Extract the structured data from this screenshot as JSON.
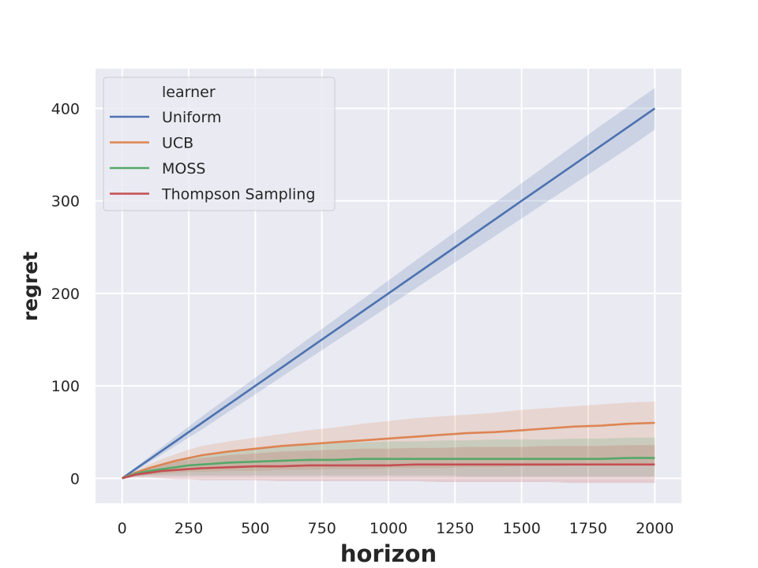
{
  "chart_data": {
    "type": "line",
    "title": "",
    "xlabel": "horizon",
    "ylabel": "regret",
    "xlim": [
      -100,
      2100
    ],
    "ylim": [
      -27,
      443
    ],
    "xticks": [
      0,
      250,
      500,
      750,
      1000,
      1250,
      1500,
      1750,
      2000
    ],
    "yticks": [
      0,
      100,
      200,
      300,
      400
    ],
    "grid": true,
    "legend": {
      "title": "learner",
      "placement": "top-left"
    },
    "x": [
      0,
      50,
      100,
      150,
      200,
      250,
      300,
      400,
      500,
      600,
      700,
      800,
      900,
      1000,
      1100,
      1200,
      1300,
      1400,
      1500,
      1600,
      1700,
      1800,
      1900,
      2000
    ],
    "series": [
      {
        "name": "Uniform",
        "color": "#4c72b0",
        "values": [
          0,
          10,
          20,
          30,
          40,
          50,
          60,
          80,
          100,
          120,
          140,
          160,
          180,
          200,
          220,
          240,
          260,
          280,
          300,
          320,
          340,
          360,
          380,
          400
        ],
        "lower": [
          0,
          8,
          17,
          26,
          35,
          44,
          53,
          72,
          91,
          110,
          129,
          148,
          167,
          186,
          205,
          224,
          243,
          262,
          281,
          300,
          319,
          338,
          357,
          377
        ],
        "upper": [
          0,
          12,
          23,
          34,
          45,
          56,
          67,
          88,
          109,
          130,
          151,
          172,
          193,
          214,
          235,
          256,
          277,
          298,
          319,
          340,
          361,
          382,
          402,
          422
        ]
      },
      {
        "name": "UCB",
        "color": "#dd8452",
        "values": [
          0,
          6,
          11,
          15,
          19,
          22,
          25,
          29,
          32,
          35,
          37,
          39,
          41,
          43,
          45,
          47,
          49,
          50,
          52,
          54,
          56,
          57,
          59,
          60
        ],
        "lower": [
          0,
          3,
          4,
          5,
          6,
          7,
          7,
          8,
          8,
          9,
          9,
          10,
          10,
          11,
          11,
          11,
          12,
          12,
          13,
          13,
          14,
          14,
          15,
          15
        ],
        "upper": [
          0,
          8,
          15,
          21,
          26,
          31,
          35,
          40,
          44,
          48,
          52,
          55,
          59,
          62,
          65,
          67,
          69,
          71,
          74,
          76,
          78,
          80,
          82,
          83
        ]
      },
      {
        "name": "MOSS",
        "color": "#55a868",
        "values": [
          0,
          5,
          8,
          10,
          12,
          14,
          15,
          17,
          18,
          19,
          20,
          20,
          21,
          21,
          21,
          21,
          21,
          21,
          21,
          21,
          21,
          21,
          22,
          22
        ],
        "lower": [
          0,
          2,
          3,
          3,
          3,
          3,
          3,
          3,
          3,
          3,
          3,
          3,
          3,
          3,
          3,
          3,
          2,
          2,
          2,
          2,
          2,
          2,
          2,
          2
        ],
        "upper": [
          0,
          8,
          12,
          16,
          20,
          23,
          26,
          30,
          33,
          35,
          37,
          38,
          39,
          40,
          40,
          41,
          41,
          42,
          42,
          42,
          43,
          43,
          44,
          44
        ]
      },
      {
        "name": "Thompson Sampling",
        "color": "#c44e52",
        "values": [
          0,
          4,
          6,
          8,
          9,
          10,
          11,
          12,
          13,
          13,
          14,
          14,
          14,
          14,
          15,
          15,
          15,
          15,
          15,
          15,
          15,
          15,
          15,
          15
        ],
        "lower": [
          0,
          1,
          1,
          0,
          -1,
          -1,
          -2,
          -2,
          -2,
          -3,
          -3,
          -3,
          -3,
          -3,
          -3,
          -4,
          -4,
          -4,
          -4,
          -4,
          -5,
          -5,
          -5,
          -5
        ],
        "upper": [
          0,
          7,
          11,
          15,
          18,
          20,
          22,
          25,
          27,
          29,
          30,
          31,
          32,
          32,
          33,
          33,
          34,
          34,
          34,
          35,
          35,
          35,
          36,
          36
        ]
      }
    ]
  }
}
